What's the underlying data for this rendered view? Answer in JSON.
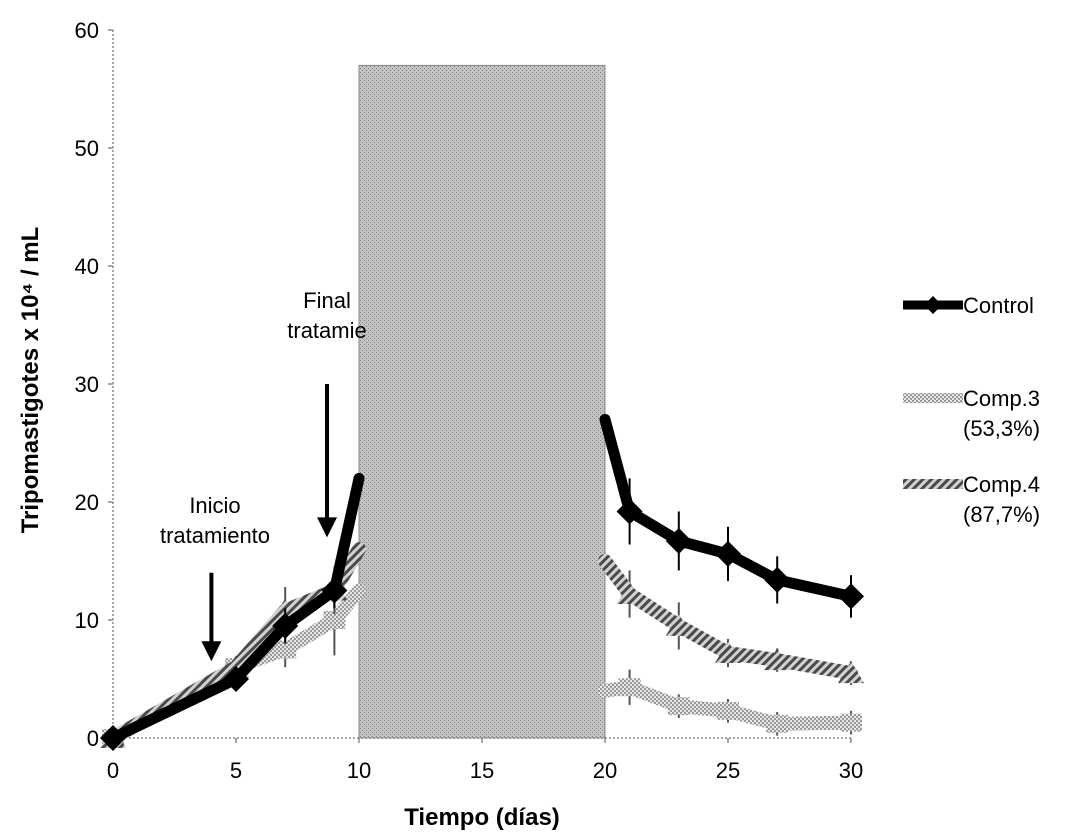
{
  "chart_data": {
    "type": "line",
    "xlabel": "Tiempo (días)",
    "ylabel": "Tripomastigotes x 10⁴ / mL",
    "xlim": [
      0,
      30
    ],
    "ylim": [
      0,
      60
    ],
    "xticks": [
      0,
      5,
      10,
      15,
      20,
      25,
      30
    ],
    "yticks": [
      0,
      10,
      20,
      30,
      40,
      50,
      60
    ],
    "grid": false,
    "legend_position": "right",
    "shaded_region": {
      "x_start": 10,
      "x_end": 20,
      "y_top": 57
    },
    "series": [
      {
        "name": "Control",
        "color": "#000000",
        "style": "solid",
        "x": [
          0,
          5,
          7,
          9,
          10,
          20,
          21,
          23,
          25,
          27,
          30
        ],
        "y": [
          0,
          5,
          9.5,
          12.5,
          22,
          27,
          19.2,
          16.7,
          15.6,
          13.4,
          12
        ],
        "error": [
          0,
          0.8,
          1.5,
          1.5,
          0,
          0,
          2.8,
          2.5,
          2.3,
          2,
          1.8
        ]
      },
      {
        "name": "Comp.3",
        "label_line2": "(53,3%)",
        "color": "#b5b5b5",
        "style": "dotted",
        "x": [
          0,
          5,
          7,
          9,
          10,
          20,
          21,
          23,
          25,
          27,
          30
        ],
        "y": [
          0,
          6,
          7.5,
          10,
          12.5,
          4,
          4.3,
          2.7,
          2.3,
          1.2,
          1.3
        ],
        "error": [
          0,
          0.8,
          1.5,
          3,
          0,
          0,
          1.5,
          1,
          1,
          1,
          1
        ]
      },
      {
        "name": "Comp.4",
        "label_line2": "(87,7%)",
        "color": "#6e6e6e",
        "style": "hatched",
        "x": [
          0,
          5,
          7,
          9,
          10,
          20,
          21,
          23,
          25,
          27,
          30
        ],
        "y": [
          0,
          6,
          10.8,
          12.5,
          16,
          15,
          12.2,
          9.5,
          7.2,
          6.6,
          5.5
        ],
        "error": [
          0,
          0.8,
          2,
          2,
          0,
          0,
          2,
          2,
          1.2,
          1,
          1
        ]
      }
    ],
    "annotations": [
      {
        "lines": [
          "Inicio",
          "tratamiento"
        ],
        "arrow_x": 4,
        "arrow_y_from": 14,
        "arrow_y_to": 6.5
      },
      {
        "lines": [
          "Final",
          "tratamie"
        ],
        "arrow_x": 8.7,
        "arrow_y_from": 30,
        "arrow_y_to": 17
      }
    ]
  }
}
